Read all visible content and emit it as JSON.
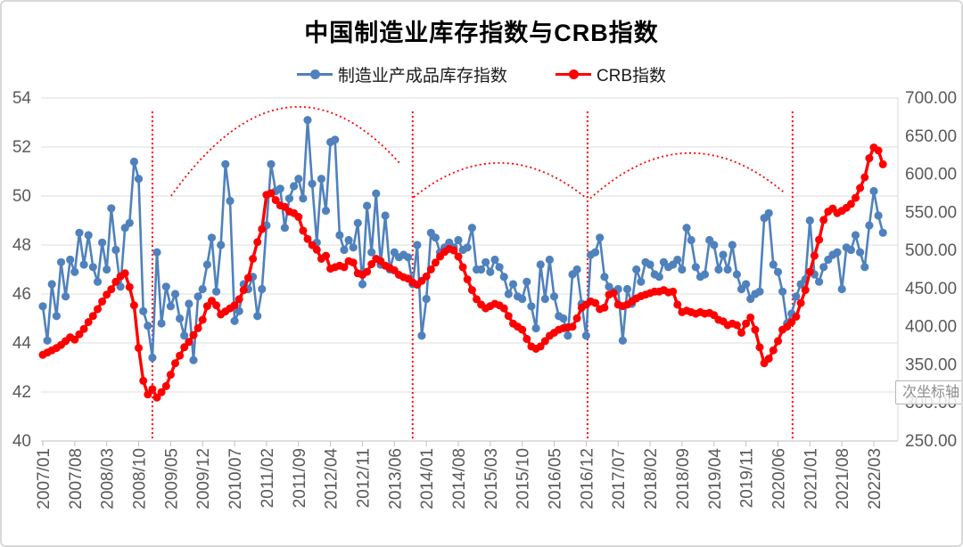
{
  "figure": {
    "title": "中国制造业库存指数与CRB指数"
  },
  "tooltip": {
    "text": "次坐标轴"
  },
  "chart_data": {
    "type": "line",
    "title": "中国制造业库存指数与CRB指数",
    "x_start": "2007/01",
    "x_end": "2022/05",
    "x_months_per_tick": 7,
    "x_tick_labels": [
      "2007/01",
      "2007/08",
      "2008/03",
      "2008/10",
      "2009/05",
      "2009/12",
      "2010/07",
      "2011/02",
      "2011/09",
      "2012/04",
      "2012/11",
      "2013/06",
      "2014/01",
      "2014/08",
      "2015/03",
      "2015/10",
      "2016/05",
      "2016/12",
      "2017/07",
      "2018/02",
      "2018/09",
      "2019/04",
      "2019/11",
      "2020/06",
      "2021/01",
      "2021/08",
      "2022/03"
    ],
    "left_axis": {
      "min": 40,
      "max": 54,
      "step": 2,
      "ticks": [
        "40",
        "42",
        "44",
        "46",
        "48",
        "50",
        "52",
        "54"
      ]
    },
    "right_axis": {
      "min": 250,
      "max": 700,
      "step": 50,
      "ticks": [
        "250.00",
        "300.00",
        "350.00",
        "400.00",
        "450.00",
        "500.00",
        "550.00",
        "600.00",
        "650.00",
        "700.00"
      ]
    },
    "grid": true,
    "legend_position": "top",
    "series": [
      {
        "name": "制造业产成品库存指数",
        "axis": "left",
        "color": "#4F81BD",
        "values": [
          45.5,
          44.1,
          46.4,
          45.1,
          47.3,
          45.9,
          47.4,
          46.9,
          48.5,
          47.2,
          48.4,
          47.1,
          46.5,
          48.1,
          47.0,
          49.5,
          47.8,
          46.3,
          48.7,
          48.9,
          51.4,
          50.7,
          45.3,
          44.7,
          43.4,
          47.7,
          44.8,
          46.3,
          45.5,
          46.0,
          45.0,
          44.3,
          45.6,
          43.3,
          45.9,
          46.2,
          47.2,
          48.3,
          46.1,
          48.0,
          51.3,
          49.8,
          44.9,
          45.3,
          46.4,
          46.2,
          46.7,
          45.1,
          46.2,
          48.8,
          51.3,
          50.2,
          50.3,
          48.7,
          49.9,
          50.4,
          50.7,
          49.9,
          53.1,
          50.5,
          48.1,
          50.7,
          49.4,
          52.2,
          52.3,
          48.4,
          47.8,
          48.2,
          47.9,
          48.9,
          46.4,
          49.6,
          47.7,
          50.1,
          47.2,
          49.2,
          47.0,
          47.7,
          47.5,
          47.6,
          47.5,
          46.4,
          48.0,
          44.3,
          45.8,
          48.5,
          48.3,
          47.7,
          47.9,
          48.1,
          47.9,
          48.2,
          47.8,
          47.9,
          48.7,
          47.0,
          47.0,
          47.3,
          46.9,
          47.4,
          47.1,
          46.7,
          46.0,
          46.4,
          45.9,
          45.8,
          46.5,
          45.5,
          44.6,
          47.2,
          45.8,
          47.4,
          45.9,
          45.1,
          45.0,
          44.3,
          46.8,
          47.0,
          45.6,
          44.3,
          47.6,
          47.7,
          48.3,
          46.7,
          46.3,
          46.1,
          46.2,
          44.1,
          46.2,
          45.6,
          47.0,
          46.5,
          47.3,
          47.2,
          46.8,
          46.7,
          47.3,
          47.1,
          47.2,
          47.4,
          47.0,
          48.7,
          48.2,
          47.1,
          46.7,
          46.8,
          48.2,
          48.0,
          47.0,
          47.6,
          47.0,
          48.0,
          46.8,
          46.2,
          46.4,
          45.8,
          46.0,
          46.1,
          49.1,
          49.3,
          47.2,
          46.9,
          46.1,
          44.8,
          45.2,
          45.9,
          46.4,
          46.6,
          49.0,
          46.8,
          46.5,
          47.1,
          47.4,
          47.6,
          47.7,
          46.2,
          47.9,
          47.8,
          48.4,
          47.7,
          47.1,
          48.8,
          50.2,
          49.2,
          48.5
        ]
      },
      {
        "name": "CRB指数",
        "axis": "right",
        "color": "#FF0000",
        "values": [
          363,
          366,
          369,
          372,
          376,
          381,
          386,
          383,
          390,
          397,
          406,
          414,
          423,
          433,
          442,
          449,
          459,
          466,
          470,
          452,
          428,
          372,
          329,
          311,
          318,
          307,
          314,
          322,
          337,
          352,
          362,
          373,
          380,
          389,
          398,
          409,
          427,
          434,
          428,
          416,
          420,
          424,
          428,
          436,
          448,
          464,
          489,
          511,
          528,
          573,
          575,
          566,
          559,
          557,
          551,
          549,
          544,
          526,
          515,
          507,
          501,
          489,
          493,
          476,
          478,
          480,
          478,
          486,
          484,
          470,
          468,
          472,
          482,
          489,
          486,
          480,
          477,
          474,
          468,
          465,
          463,
          458,
          455,
          460,
          466,
          475,
          484,
          492,
          498,
          502,
          500,
          492,
          478,
          462,
          448,
          436,
          429,
          424,
          427,
          430,
          428,
          424,
          414,
          404,
          400,
          396,
          384,
          374,
          371,
          374,
          381,
          388,
          392,
          396,
          398,
          399,
          400,
          411,
          425,
          429,
          433,
          431,
          423,
          425,
          442,
          444,
          429,
          427,
          429,
          433,
          437,
          440,
          442,
          444,
          446,
          446,
          448,
          445,
          446,
          429,
          419,
          421,
          419,
          417,
          419,
          417,
          418,
          415,
          409,
          407,
          402,
          404,
          402,
          392,
          404,
          412,
          396,
          373,
          352,
          358,
          369,
          381,
          396,
          400,
          406,
          413,
          431,
          448,
          472,
          493,
          514,
          540,
          551,
          555,
          549,
          552,
          556,
          561,
          569,
          582,
          596,
          621,
          635,
          631,
          613
        ]
      }
    ],
    "annotations": {
      "vlines": {
        "color": "#FF0000",
        "style": "dotted",
        "months": [
          24,
          81,
          119.3,
          164.2
        ],
        "from_value": 53.45,
        "to_value": 40
      },
      "arcs": [
        {
          "from_month": 28.1,
          "from_value": 50.0,
          "to_month": 78.1,
          "to_value": 51.35,
          "peak_value": 53.6,
          "color": "#FF0000"
        },
        {
          "from_month": 81.2,
          "from_value": 49.95,
          "to_month": 119.1,
          "to_value": 49.9,
          "peak_value": 51.35,
          "color": "#FF0000"
        },
        {
          "from_month": 119.9,
          "from_value": 49.9,
          "to_month": 162.3,
          "to_value": 50.15,
          "peak_value": 51.75,
          "color": "#FF0000"
        }
      ]
    }
  }
}
